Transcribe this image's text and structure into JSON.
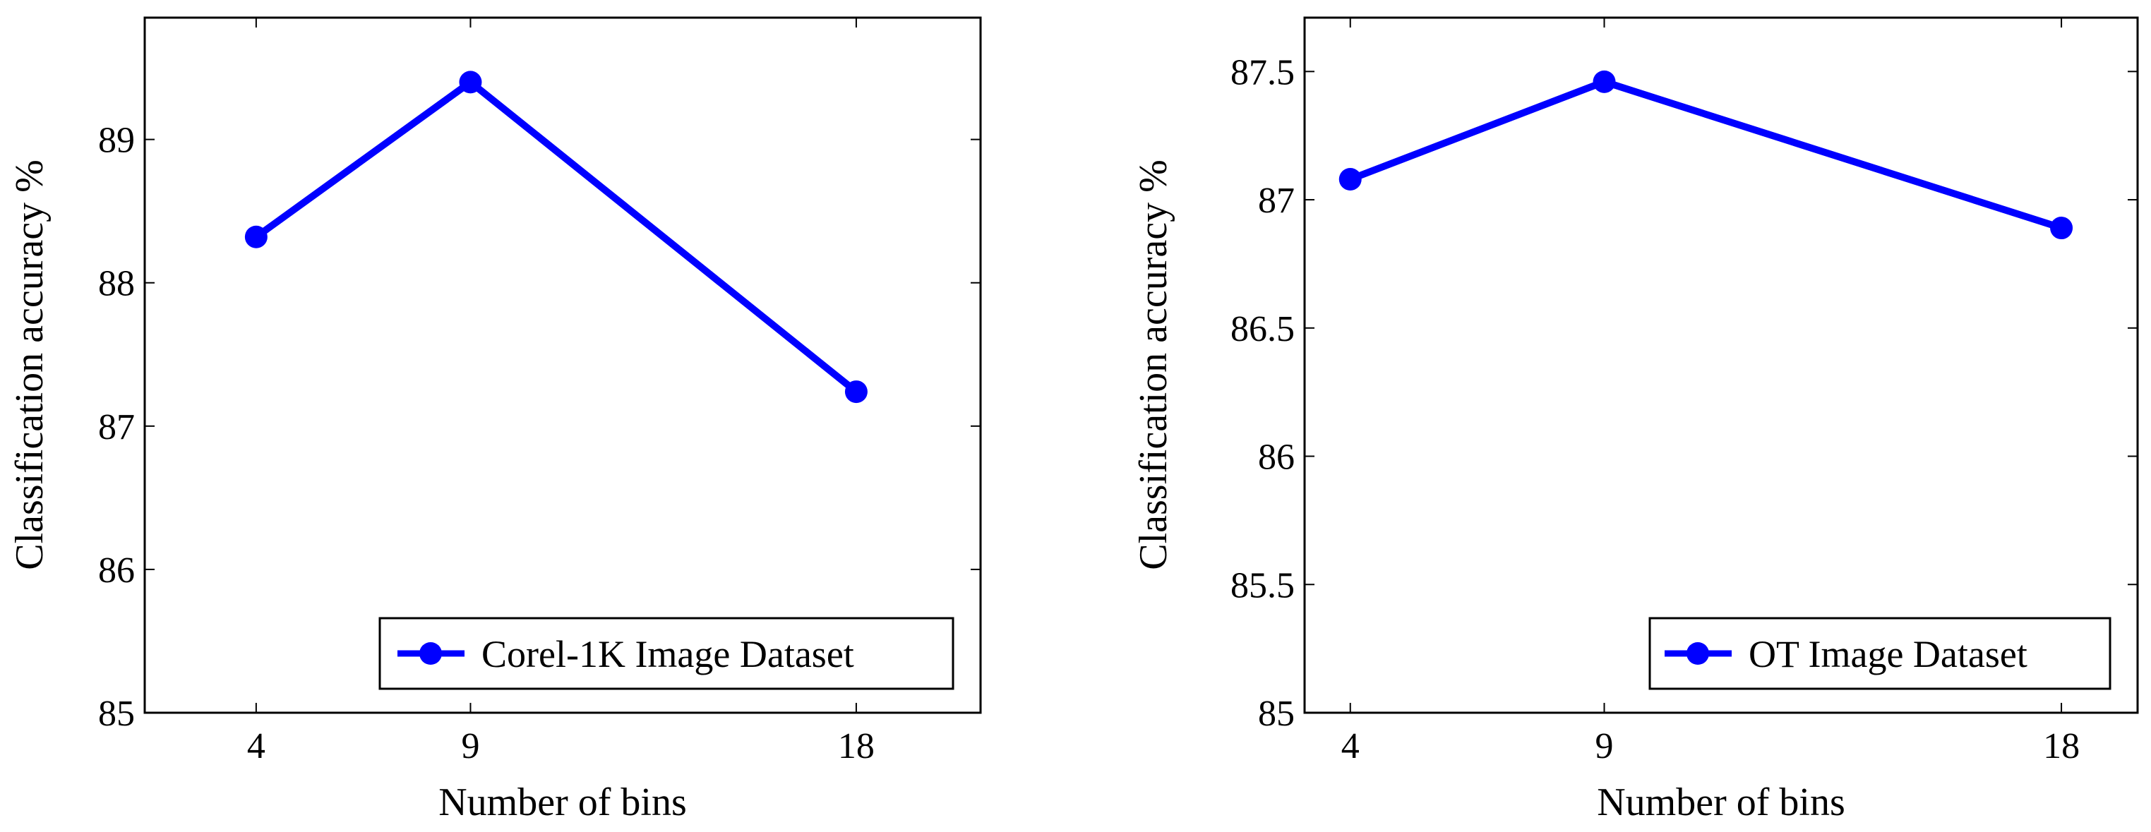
{
  "chart_data": [
    {
      "type": "line",
      "title": "",
      "xlabel": "Number of bins",
      "ylabel": "Classification accuracy %",
      "x": [
        4,
        9,
        18
      ],
      "xticks": [
        "4",
        "9",
        "18"
      ],
      "xlim": [
        1.4,
        20.9
      ],
      "ylim": [
        85,
        89.85
      ],
      "yticks": [
        "85",
        "86",
        "87",
        "88",
        "89"
      ],
      "ytick_values": [
        85,
        86,
        87,
        88,
        89
      ],
      "series": [
        {
          "name": "Corel-1K Image Dataset",
          "values": [
            88.32,
            89.4,
            87.24
          ]
        }
      ],
      "series_color": "#0000ff",
      "legend_position": "bottom-right",
      "grid": false
    },
    {
      "type": "line",
      "title": "",
      "xlabel": "Number of bins",
      "ylabel": "Classification accuracy %",
      "x": [
        4,
        9,
        18
      ],
      "xticks": [
        "4",
        "9",
        "18"
      ],
      "xlim": [
        3.1,
        19.5
      ],
      "ylim": [
        85,
        87.71
      ],
      "yticks": [
        "85",
        "85.5",
        "86",
        "86.5",
        "87",
        "87.5"
      ],
      "ytick_values": [
        85,
        85.5,
        86,
        86.5,
        87,
        87.5
      ],
      "series": [
        {
          "name": "OT Image Dataset",
          "values": [
            87.08,
            87.46,
            86.89
          ]
        }
      ],
      "series_color": "#0000ff",
      "legend_position": "bottom-right",
      "grid": false
    }
  ]
}
